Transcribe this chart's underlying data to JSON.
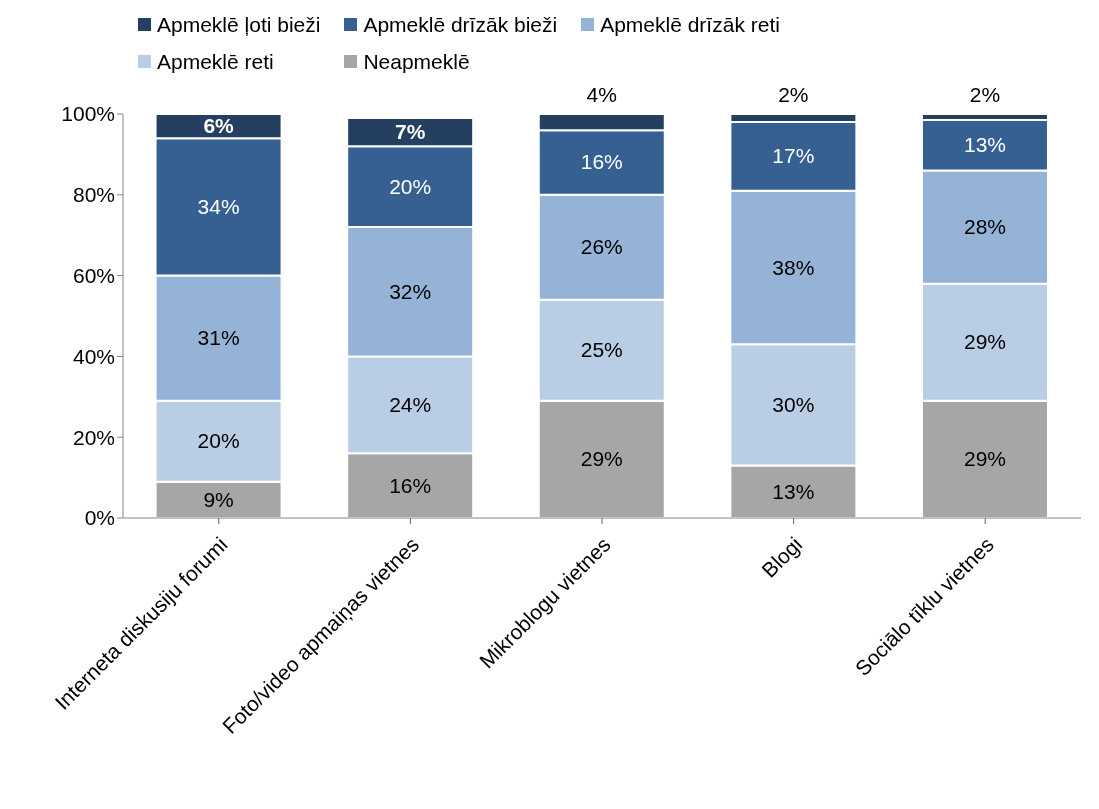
{
  "chart_data": {
    "type": "bar",
    "stacked": true,
    "categories": [
      "Interneta diskusiju forumi",
      "Foto/video apmaiņas vietnes",
      "Mikroblogu vietnes",
      "Blogi",
      "Sociālo tīklu vietnes"
    ],
    "series": [
      {
        "name": "Neapmeklē",
        "color": "#a6a6a6",
        "values": [
          9,
          16,
          29,
          13,
          29
        ],
        "value_labels": [
          "9%",
          "16%",
          "29%",
          "13%",
          "29%"
        ]
      },
      {
        "name": "Apmeklē reti",
        "color": "#b9cde5",
        "values": [
          20,
          24,
          25,
          30,
          29
        ],
        "value_labels": [
          "20%",
          "24%",
          "25%",
          "30%",
          "29%"
        ]
      },
      {
        "name": "Apmeklē drīzāk reti",
        "color": "#95b3d7",
        "values": [
          31,
          32,
          26,
          38,
          28
        ],
        "value_labels": [
          "31%",
          "32%",
          "26%",
          "38%",
          "28%"
        ]
      },
      {
        "name": "Apmeklē drīzāk bieži",
        "color": "#376092",
        "values": [
          34,
          20,
          16,
          17,
          12.5
        ],
        "value_labels": [
          "34%",
          "20%",
          "16%",
          "17%",
          "13%"
        ]
      },
      {
        "name": "Apmeklē ļoti bieži",
        "color": "#243f60",
        "values": [
          6,
          7,
          4,
          2,
          1.5
        ],
        "value_labels": [
          "6%",
          "7%",
          "4%",
          "2%",
          "2%"
        ]
      }
    ],
    "ylim": [
      0,
      100
    ],
    "yticks": [
      {
        "value": 0,
        "label": "0%"
      },
      {
        "value": 20,
        "label": "20%"
      },
      {
        "value": 40,
        "label": "40%"
      },
      {
        "value": 60,
        "label": "60%"
      },
      {
        "value": 80,
        "label": "80%"
      },
      {
        "value": 100,
        "label": "100%"
      }
    ],
    "legend": "top"
  }
}
